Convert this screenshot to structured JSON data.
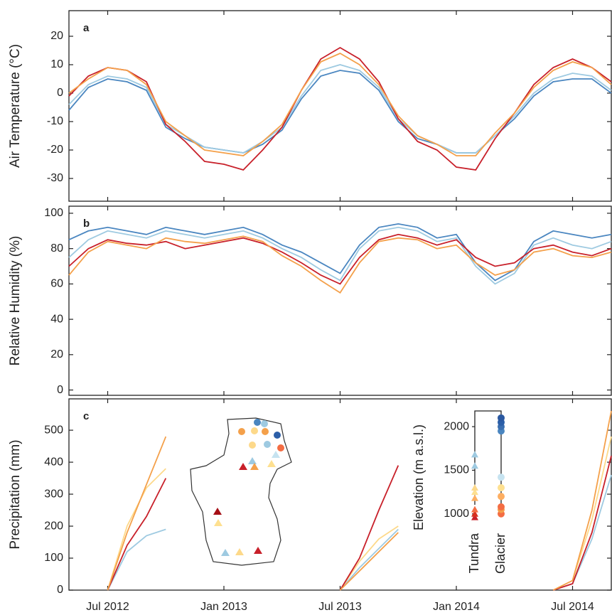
{
  "chart_data": [
    {
      "type": "line",
      "panel_label": "a",
      "ylabel": "Air Temperature (°C)",
      "x": [
        "2012-05",
        "2012-06",
        "2012-07",
        "2012-08",
        "2012-09",
        "2012-10",
        "2012-11",
        "2012-12",
        "2013-01",
        "2013-02",
        "2013-03",
        "2013-04",
        "2013-05",
        "2013-06",
        "2013-07",
        "2013-08",
        "2013-09",
        "2013-10",
        "2013-11",
        "2013-12",
        "2014-01",
        "2014-02",
        "2014-03",
        "2014-04",
        "2014-05",
        "2014-06",
        "2014-07",
        "2014-08",
        "2014-09"
      ],
      "xlim": [
        "2012-05",
        "2014-09"
      ],
      "ylim": [
        -38,
        29
      ],
      "yticks": [
        -30,
        -20,
        -10,
        0,
        10,
        20
      ],
      "series": [
        {
          "color": "#4a86c0",
          "values": [
            -6,
            2,
            5,
            4,
            1,
            -12,
            -16,
            -19,
            -20,
            -21,
            -18,
            -13,
            -2,
            6,
            8,
            7,
            1,
            -10,
            -16,
            -18,
            -21,
            -21,
            -15,
            -9,
            -1,
            4,
            5,
            5,
            0
          ]
        },
        {
          "color": "#9ecae1",
          "values": [
            -4,
            3,
            6,
            5,
            2,
            -11,
            -15,
            -19,
            -20,
            -21,
            -17,
            -12,
            -1,
            8,
            10,
            8,
            2,
            -9,
            -15,
            -18,
            -21,
            -21,
            -15,
            -8,
            0,
            5,
            7,
            6,
            1
          ]
        },
        {
          "color": "#c8202a",
          "values": [
            -1,
            6,
            9,
            8,
            4,
            -11,
            -17,
            -24,
            -25,
            -27,
            -20,
            -12,
            1,
            12,
            16,
            12,
            4,
            -9,
            -17,
            -20,
            -26,
            -27,
            -16,
            -7,
            3,
            9,
            12,
            9,
            4
          ]
        },
        {
          "color": "#f4a04a",
          "values": [
            0,
            5,
            9,
            8,
            3,
            -10,
            -15,
            -20,
            -21,
            -22,
            -17,
            -11,
            1,
            11,
            14,
            10,
            3,
            -8,
            -15,
            -18,
            -22,
            -22,
            -14,
            -7,
            2,
            8,
            11,
            9,
            3
          ]
        }
      ]
    },
    {
      "type": "line",
      "panel_label": "b",
      "ylabel": "Relative Humidity (%)",
      "x": [
        "2012-05",
        "2012-06",
        "2012-07",
        "2012-08",
        "2012-09",
        "2012-10",
        "2012-11",
        "2012-12",
        "2013-01",
        "2013-02",
        "2013-03",
        "2013-04",
        "2013-05",
        "2013-06",
        "2013-07",
        "2013-08",
        "2013-09",
        "2013-10",
        "2013-11",
        "2013-12",
        "2014-01",
        "2014-02",
        "2014-03",
        "2014-04",
        "2014-05",
        "2014-06",
        "2014-07",
        "2014-08",
        "2014-09"
      ],
      "xlim": [
        "2012-05",
        "2014-09"
      ],
      "ylim": [
        -3,
        104
      ],
      "yticks": [
        0,
        20,
        40,
        60,
        80,
        100
      ],
      "series": [
        {
          "color": "#4a86c0",
          "values": [
            85,
            90,
            92,
            90,
            88,
            92,
            90,
            88,
            90,
            92,
            88,
            82,
            78,
            72,
            66,
            82,
            92,
            94,
            92,
            86,
            88,
            72,
            62,
            68,
            84,
            90,
            88,
            86,
            88
          ]
        },
        {
          "color": "#9ecae1",
          "values": [
            75,
            85,
            90,
            88,
            86,
            90,
            88,
            86,
            88,
            90,
            86,
            80,
            75,
            68,
            62,
            80,
            90,
            92,
            90,
            84,
            86,
            70,
            60,
            66,
            82,
            86,
            82,
            80,
            84
          ]
        },
        {
          "color": "#c8202a",
          "values": [
            70,
            80,
            85,
            83,
            82,
            84,
            80,
            82,
            84,
            86,
            83,
            78,
            72,
            65,
            60,
            75,
            85,
            88,
            86,
            82,
            85,
            75,
            70,
            72,
            80,
            82,
            78,
            76,
            80
          ]
        },
        {
          "color": "#f4a04a",
          "values": [
            65,
            78,
            84,
            82,
            80,
            86,
            84,
            83,
            85,
            87,
            84,
            76,
            70,
            62,
            55,
            72,
            84,
            86,
            85,
            80,
            82,
            72,
            65,
            68,
            78,
            80,
            76,
            75,
            78
          ]
        }
      ]
    },
    {
      "type": "line",
      "panel_label": "c",
      "ylabel": "Precipitation (mm)",
      "x": [
        "2012-05",
        "2012-06",
        "2012-07",
        "2012-08",
        "2012-09",
        "2012-10",
        "2012-11",
        "2012-12",
        "2013-01",
        "2013-02",
        "2013-03",
        "2013-04",
        "2013-05",
        "2013-06",
        "2013-07",
        "2013-08",
        "2013-09",
        "2013-10",
        "2013-11",
        "2013-12",
        "2014-01",
        "2014-02",
        "2014-03",
        "2014-04",
        "2014-05",
        "2014-06",
        "2014-07",
        "2014-08",
        "2014-09"
      ],
      "xlim": [
        "2012-05",
        "2014-09"
      ],
      "ylim": [
        0,
        598
      ],
      "yticks": [
        0,
        100,
        200,
        300,
        400,
        500
      ],
      "xticks": [
        {
          "value": "2012-07",
          "label": "Jul 2012"
        },
        {
          "value": "2013-01",
          "label": "Jan 2013"
        },
        {
          "value": "2013-07",
          "label": "Jul 2013"
        },
        {
          "value": "2014-01",
          "label": "Jan 2014"
        },
        {
          "value": "2014-07",
          "label": "Jul 2014"
        }
      ],
      "series": [
        {
          "color": "#9ecae1",
          "values": [
            null,
            null,
            0,
            120,
            170,
            190,
            null,
            null,
            null,
            null,
            null,
            null,
            null,
            null,
            0,
            70,
            130,
            190,
            null,
            null,
            null,
            null,
            null,
            null,
            null,
            0,
            20,
            160,
            360
          ]
        },
        {
          "color": "#fdd98a",
          "values": [
            null,
            null,
            0,
            200,
            320,
            380,
            null,
            null,
            null,
            null,
            null,
            null,
            null,
            null,
            0,
            90,
            160,
            200,
            null,
            null,
            null,
            null,
            null,
            null,
            null,
            0,
            30,
            220,
            480
          ]
        },
        {
          "color": "#c8202a",
          "values": [
            null,
            null,
            0,
            140,
            230,
            350,
            null,
            null,
            null,
            null,
            null,
            null,
            null,
            null,
            0,
            100,
            250,
            390,
            null,
            null,
            null,
            null,
            null,
            null,
            null,
            0,
            20,
            180,
            420
          ]
        },
        {
          "color": "#f4a04a",
          "values": [
            null,
            null,
            0,
            180,
            330,
            480,
            null,
            null,
            null,
            null,
            null,
            null,
            null,
            null,
            0,
            60,
            120,
            180,
            null,
            null,
            null,
            null,
            null,
            null,
            null,
            0,
            30,
            250,
            560
          ]
        }
      ]
    },
    {
      "type": "scatter",
      "ylabel": "Elevation (m a.s.l.)",
      "categories": [
        "Tundra",
        "Glacier"
      ],
      "ylim": [
        900,
        2180
      ],
      "yticks": [
        1000,
        1500,
        2000
      ],
      "series": [
        {
          "color": "#c8202a",
          "values": [
            960,
            null
          ]
        },
        {
          "color": "#d7301f",
          "values": [
            1000,
            null
          ]
        },
        {
          "color": "#f46d43",
          "values": [
            1050,
            null
          ]
        },
        {
          "color": "#fdae61",
          "values": [
            1180,
            null
          ]
        },
        {
          "color": "#fee090",
          "values": [
            1250,
            null
          ]
        },
        {
          "color": "#fdd98a",
          "values": [
            1300,
            null
          ]
        },
        {
          "color": "#9ecae1",
          "values": [
            1550,
            null
          ]
        },
        {
          "color": "#9ecae1",
          "values": [
            1680,
            null
          ]
        },
        {
          "color": "#f46d43",
          "values": [
            null,
            1000
          ]
        },
        {
          "color": "#f4a04a",
          "values": [
            null,
            1050
          ]
        },
        {
          "color": "#f46d43",
          "values": [
            null,
            1080
          ]
        },
        {
          "color": "#fdae61",
          "values": [
            null,
            1200
          ]
        },
        {
          "color": "#fee090",
          "values": [
            null,
            1300
          ]
        },
        {
          "color": "#c6e3f0",
          "values": [
            null,
            1420
          ]
        },
        {
          "color": "#4a86c0",
          "values": [
            null,
            1950
          ]
        },
        {
          "color": "#3b6fb0",
          "values": [
            null,
            2000
          ]
        },
        {
          "color": "#2c5fa8",
          "values": [
            null,
            2050
          ]
        },
        {
          "color": "#2a58a0",
          "values": [
            null,
            2100
          ]
        }
      ]
    }
  ]
}
